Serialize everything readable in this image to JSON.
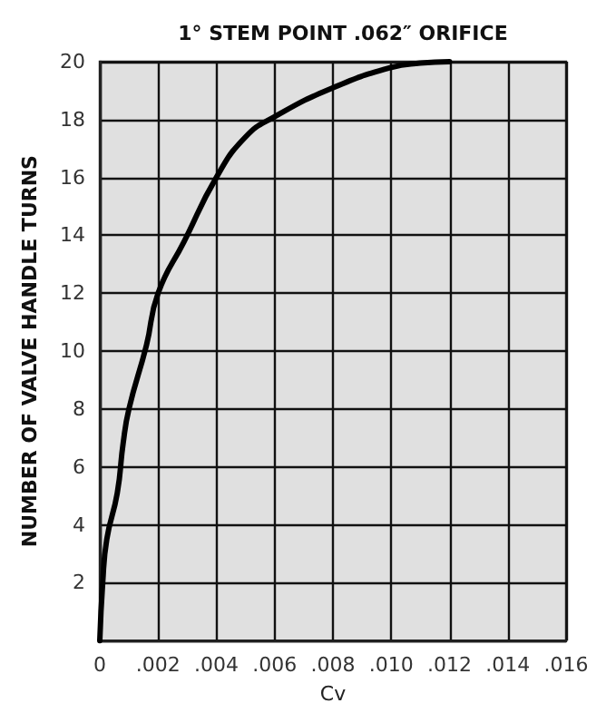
{
  "chart_data": {
    "type": "line",
    "title": "1° STEM POINT .062″ ORIFICE",
    "xlabel": "Cv",
    "ylabel": "NUMBER OF VALVE HANDLE TURNS",
    "series": [
      {
        "color": "#000000",
        "x": [
          0,
          0.0001,
          0.00024,
          0.0006,
          0.0008,
          0.001,
          0.0016,
          0.002,
          0.0029,
          0.004,
          0.005,
          0.006,
          0.008,
          0.01,
          0.011,
          0.012
        ],
        "values": [
          0,
          2,
          3.5,
          5.1,
          6.8,
          8,
          10.2,
          12,
          13.8,
          16,
          17.4,
          18.1,
          19.1,
          19.8,
          19.95,
          20
        ]
      }
    ],
    "xlim": [
      0,
      0.016
    ],
    "ylim": [
      0,
      20
    ],
    "xticks": [
      {
        "value": 0,
        "label": "0"
      },
      {
        "value": 0.002,
        "label": ".002"
      },
      {
        "value": 0.004,
        "label": ".004"
      },
      {
        "value": 0.006,
        "label": ".006"
      },
      {
        "value": 0.008,
        "label": ".008"
      },
      {
        "value": 0.01,
        "label": ".010"
      },
      {
        "value": 0.012,
        "label": ".012"
      },
      {
        "value": 0.014,
        "label": ".014"
      },
      {
        "value": 0.016,
        "label": ".016"
      }
    ],
    "yticks": [
      {
        "value": 0,
        "label": null
      },
      2,
      4,
      6,
      8,
      10,
      12,
      14,
      16,
      18,
      20
    ],
    "grid": true,
    "marker": "none",
    "line_style": "solid"
  }
}
